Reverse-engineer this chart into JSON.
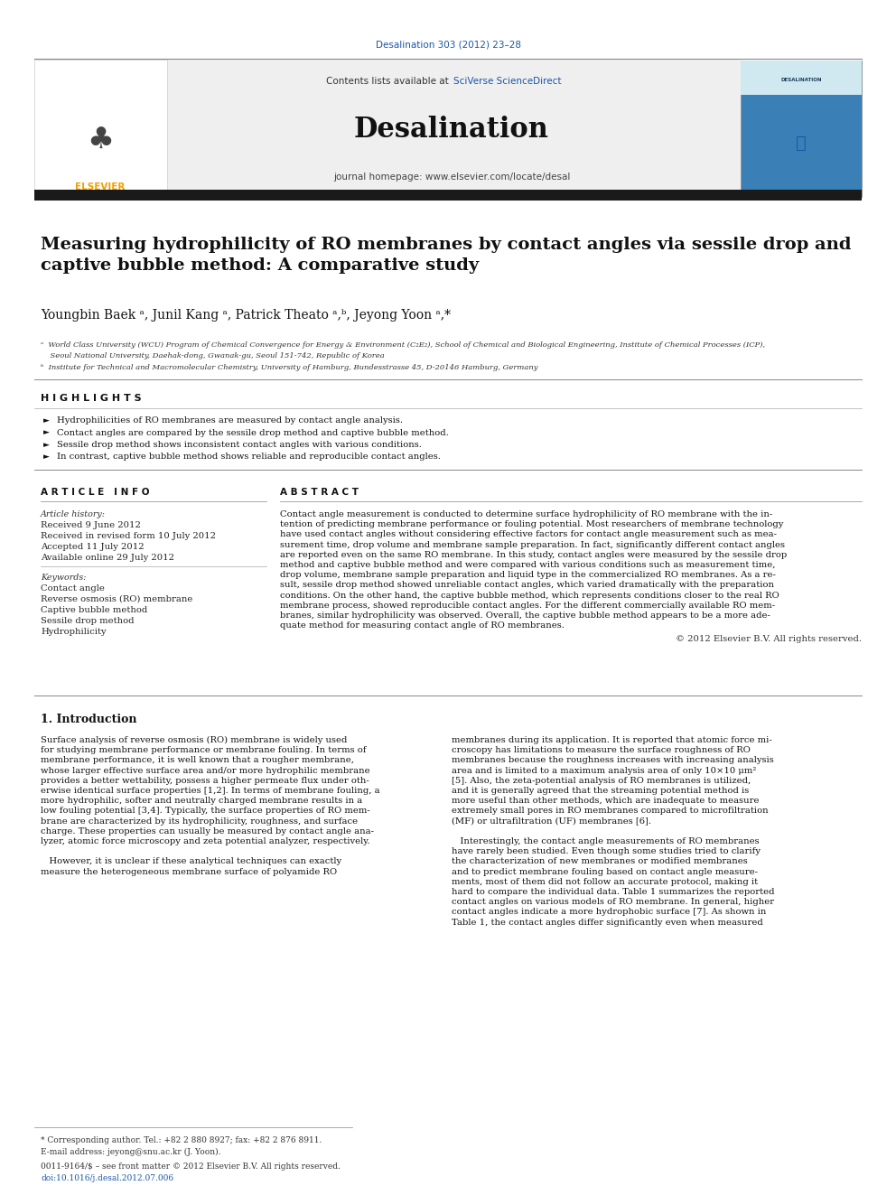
{
  "page_width": 9.92,
  "page_height": 13.23,
  "bg_color": "#ffffff",
  "top_link": "Desalination 303 (2012) 23–28",
  "journal_name": "Desalination",
  "contents_text": "Contents lists available at ",
  "sciverse_text": "SciVerse ScienceDirect",
  "journal_homepage": "journal homepage: www.elsevier.com/locate/desal",
  "header_bg": "#efefef",
  "elsevier_color": "#f0a000",
  "title": "Measuring hydrophilicity of RO membranes by contact angles via sessile drop and\ncaptive bubble method: A comparative study",
  "authors_line": "Youngbin Baek ᵃ, Junil Kang ᵃ, Patrick Theato ᵃ,ᵇ, Jeyong Yoon ᵃ,*",
  "affil_a": "ᵃ  World Class University (WCU) Program of Chemical Convergence for Energy & Environment (C₂E₂), School of Chemical and Biological Engineering, Institute of Chemical Processes (ICP),",
  "affil_a2": "    Seoul National University, Daehak-dong, Gwanak-gu, Seoul 151-742, Republic of Korea",
  "affil_b": "ᵇ  Institute for Technical and Macromolecular Chemistry, University of Hamburg, Bundesstrasse 45, D-20146 Hamburg, Germany",
  "highlights_title": "H I G H L I G H T S",
  "highlights": [
    "Hydrophilicities of RO membranes are measured by contact angle analysis.",
    "Contact angles are compared by the sessile drop method and captive bubble method.",
    "Sessile drop method shows inconsistent contact angles with various conditions.",
    "In contrast, captive bubble method shows reliable and reproducible contact angles."
  ],
  "article_info_title": "A R T I C L E   I N F O",
  "article_history_label": "Article history:",
  "received": "Received 9 June 2012",
  "revised": "Received in revised form 10 July 2012",
  "accepted": "Accepted 11 July 2012",
  "available": "Available online 29 July 2012",
  "keywords_label": "Keywords:",
  "keywords": [
    "Contact angle",
    "Reverse osmosis (RO) membrane",
    "Captive bubble method",
    "Sessile drop method",
    "Hydrophilicity"
  ],
  "abstract_title": "A B S T R A C T",
  "abstract_lines": [
    "Contact angle measurement is conducted to determine surface hydrophilicity of RO membrane with the in-",
    "tention of predicting membrane performance or fouling potential. Most researchers of membrane technology",
    "have used contact angles without considering effective factors for contact angle measurement such as mea-",
    "surement time, drop volume and membrane sample preparation. In fact, significantly different contact angles",
    "are reported even on the same RO membrane. In this study, contact angles were measured by the sessile drop",
    "method and captive bubble method and were compared with various conditions such as measurement time,",
    "drop volume, membrane sample preparation and liquid type in the commercialized RO membranes. As a re-",
    "sult, sessile drop method showed unreliable contact angles, which varied dramatically with the preparation",
    "conditions. On the other hand, the captive bubble method, which represents conditions closer to the real RO",
    "membrane process, showed reproducible contact angles. For the different commercially available RO mem-",
    "branes, similar hydrophilicity was observed. Overall, the captive bubble method appears to be a more ade-",
    "quate method for measuring contact angle of RO membranes."
  ],
  "copyright": "© 2012 Elsevier B.V. All rights reserved.",
  "intro_title": "1. Introduction",
  "intro1_lines": [
    "Surface analysis of reverse osmosis (RO) membrane is widely used",
    "for studying membrane performance or membrane fouling. In terms of",
    "membrane performance, it is well known that a rougher membrane,",
    "whose larger effective surface area and/or more hydrophilic membrane",
    "provides a better wettability, possess a higher permeate flux under oth-",
    "erwise identical surface properties [1,2]. In terms of membrane fouling, a",
    "more hydrophilic, softer and neutrally charged membrane results in a",
    "low fouling potential [3,4]. Typically, the surface properties of RO mem-",
    "brane are characterized by its hydrophilicity, roughness, and surface",
    "charge. These properties can usually be measured by contact angle ana-",
    "lyzer, atomic force microscopy and zeta potential analyzer, respectively.",
    "",
    "   However, it is unclear if these analytical techniques can exactly",
    "measure the heterogeneous membrane surface of polyamide RO"
  ],
  "intro2_lines": [
    "membranes during its application. It is reported that atomic force mi-",
    "croscopy has limitations to measure the surface roughness of RO",
    "membranes because the roughness increases with increasing analysis",
    "area and is limited to a maximum analysis area of only 10×10 μm²",
    "[5]. Also, the zeta-potential analysis of RO membranes is utilized,",
    "and it is generally agreed that the streaming potential method is",
    "more useful than other methods, which are inadequate to measure",
    "extremely small pores in RO membranes compared to microfiltration",
    "(MF) or ultrafiltration (UF) membranes [6].",
    "",
    "   Interestingly, the contact angle measurements of RO membranes",
    "have rarely been studied. Even though some studies tried to clarify",
    "the characterization of new membranes or modified membranes",
    "and to predict membrane fouling based on contact angle measure-",
    "ments, most of them did not follow an accurate protocol, making it",
    "hard to compare the individual data. Table 1 summarizes the reported",
    "contact angles on various models of RO membrane. In general, higher",
    "contact angles indicate a more hydrophobic surface [7]. As shown in",
    "Table 1, the contact angles differ significantly even when measured"
  ],
  "footnote1": "* Corresponding author. Tel.: +82 2 880 8927; fax: +82 2 876 8911.",
  "footnote2": "E-mail address: jeyong@snu.ac.kr (J. Yoon).",
  "footnote3": "0011-9164/$ – see front matter © 2012 Elsevier B.V. All rights reserved.",
  "footnote4": "doi:10.1016/j.desal.2012.07.006",
  "link_color": "#1a56a8",
  "sciverse_color": "#1a56a8"
}
